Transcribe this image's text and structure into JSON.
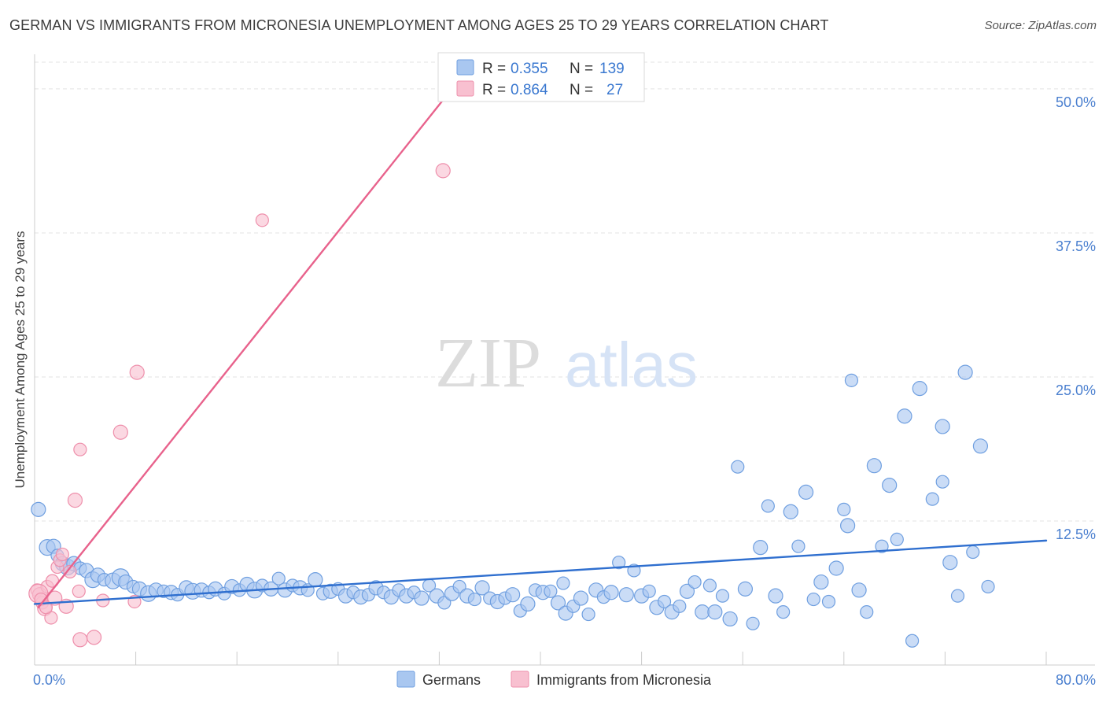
{
  "title": "GERMAN VS IMMIGRANTS FROM MICRONESIA UNEMPLOYMENT AMONG AGES 25 TO 29 YEARS CORRELATION CHART",
  "source": "Source: ZipAtlas.com",
  "watermark": {
    "zip": "ZIP",
    "atlas": "atlas"
  },
  "colors": {
    "german_fill": "#a9c7f0",
    "german_stroke": "#6f9fe0",
    "german_line": "#2f6fcf",
    "micronesia_fill": "#f8c0d0",
    "micronesia_stroke": "#ee8fab",
    "micronesia_line": "#e8628c",
    "axis_text": "#4a7fcf",
    "grid": "#e3e3e3"
  },
  "stats_legend": {
    "r_label": "R =",
    "n_label": "N =",
    "german": {
      "r": "0.355",
      "n": "139"
    },
    "micronesia": {
      "r": "0.864",
      "n": "27"
    }
  },
  "chart_data": {
    "type": "scatter",
    "title": "GERMAN VS IMMIGRANTS FROM MICRONESIA UNEMPLOYMENT AMONG AGES 25 TO 29 YEARS CORRELATION CHART",
    "xlabel": "",
    "ylabel": "Unemployment Among Ages 25 to 29 years",
    "xlim": [
      0,
      80
    ],
    "ylim": [
      0,
      53
    ],
    "x_tick_labels": [
      "0.0%",
      "80.0%"
    ],
    "y_ticks": [
      12.5,
      25.0,
      37.5,
      50.0
    ],
    "y_tick_labels": [
      "12.5%",
      "25.0%",
      "37.5%",
      "50.0%"
    ],
    "grid": true,
    "legend_position": "bottom",
    "series": [
      {
        "name": "Germans",
        "color": "#a9c7f0",
        "trend": {
          "x": [
            0,
            80
          ],
          "y": [
            5.3,
            10.8
          ]
        },
        "points": [
          [
            0.3,
            13.5,
            9
          ],
          [
            1.0,
            10.2,
            10
          ],
          [
            1.5,
            10.3,
            9
          ],
          [
            1.8,
            9.5,
            8
          ],
          [
            2.2,
            8.8,
            9
          ],
          [
            2.6,
            8.5,
            10
          ],
          [
            3.1,
            8.8,
            9
          ],
          [
            3.6,
            8.4,
            8
          ],
          [
            4.1,
            8.2,
            9
          ],
          [
            4.6,
            7.4,
            10
          ],
          [
            5.0,
            7.8,
            9
          ],
          [
            5.5,
            7.4,
            8
          ],
          [
            6.2,
            7.3,
            10
          ],
          [
            6.8,
            7.6,
            11
          ],
          [
            7.2,
            7.2,
            9
          ],
          [
            7.8,
            6.8,
            8
          ],
          [
            8.3,
            6.6,
            9
          ],
          [
            9.0,
            6.2,
            10
          ],
          [
            9.6,
            6.5,
            9
          ],
          [
            10.2,
            6.4,
            8
          ],
          [
            10.8,
            6.3,
            9
          ],
          [
            11.3,
            6.1,
            8
          ],
          [
            12.0,
            6.7,
            9
          ],
          [
            12.5,
            6.4,
            10
          ],
          [
            13.2,
            6.5,
            9
          ],
          [
            13.8,
            6.3,
            8
          ],
          [
            14.3,
            6.6,
            9
          ],
          [
            15.0,
            6.2,
            8
          ],
          [
            15.6,
            6.8,
            9
          ],
          [
            16.2,
            6.5,
            8
          ],
          [
            16.8,
            7.0,
            9
          ],
          [
            17.4,
            6.5,
            10
          ],
          [
            18.0,
            6.9,
            8
          ],
          [
            18.7,
            6.6,
            9
          ],
          [
            19.3,
            7.5,
            8
          ],
          [
            19.8,
            6.5,
            9
          ],
          [
            20.4,
            6.9,
            8
          ],
          [
            21.0,
            6.7,
            9
          ],
          [
            21.6,
            6.5,
            8
          ],
          [
            22.2,
            7.4,
            9
          ],
          [
            22.8,
            6.2,
            8
          ],
          [
            23.4,
            6.4,
            9
          ],
          [
            24.0,
            6.6,
            8
          ],
          [
            24.6,
            6.0,
            9
          ],
          [
            25.2,
            6.3,
            8
          ],
          [
            25.8,
            5.9,
            9
          ],
          [
            26.4,
            6.1,
            8
          ],
          [
            27.0,
            6.7,
            9
          ],
          [
            27.6,
            6.3,
            8
          ],
          [
            28.2,
            5.9,
            9
          ],
          [
            28.8,
            6.5,
            8
          ],
          [
            29.4,
            6.0,
            9
          ],
          [
            30.0,
            6.3,
            8
          ],
          [
            30.6,
            5.8,
            9
          ],
          [
            31.2,
            6.9,
            8
          ],
          [
            31.8,
            6.0,
            9
          ],
          [
            32.4,
            5.4,
            8
          ],
          [
            33.0,
            6.2,
            9
          ],
          [
            33.6,
            6.8,
            8
          ],
          [
            34.2,
            6.0,
            9
          ],
          [
            34.8,
            5.7,
            8
          ],
          [
            35.4,
            6.7,
            9
          ],
          [
            36.0,
            5.8,
            8
          ],
          [
            36.6,
            5.5,
            9
          ],
          [
            37.2,
            5.8,
            8
          ],
          [
            37.8,
            6.1,
            9
          ],
          [
            38.4,
            4.7,
            8
          ],
          [
            39.0,
            5.3,
            9
          ],
          [
            39.6,
            6.5,
            8
          ],
          [
            40.2,
            6.3,
            9
          ],
          [
            40.8,
            6.4,
            8
          ],
          [
            41.4,
            5.4,
            9
          ],
          [
            41.8,
            7.1,
            8
          ],
          [
            42.0,
            4.5,
            9
          ],
          [
            42.6,
            5.1,
            8
          ],
          [
            43.2,
            5.8,
            9
          ],
          [
            43.8,
            4.4,
            8
          ],
          [
            44.4,
            6.5,
            9
          ],
          [
            45.0,
            5.9,
            8
          ],
          [
            45.6,
            6.3,
            9
          ],
          [
            46.2,
            8.9,
            8
          ],
          [
            46.8,
            6.1,
            9
          ],
          [
            47.4,
            8.2,
            8
          ],
          [
            48.0,
            6.0,
            9
          ],
          [
            48.6,
            6.4,
            8
          ],
          [
            49.2,
            5.0,
            9
          ],
          [
            49.8,
            5.5,
            8
          ],
          [
            50.4,
            4.6,
            9
          ],
          [
            51.0,
            5.1,
            8
          ],
          [
            51.6,
            6.4,
            9
          ],
          [
            52.2,
            7.2,
            8
          ],
          [
            52.8,
            4.6,
            9
          ],
          [
            53.4,
            6.9,
            8
          ],
          [
            53.8,
            4.6,
            9
          ],
          [
            54.4,
            6.0,
            8
          ],
          [
            55.0,
            4.0,
            9
          ],
          [
            55.6,
            17.2,
            8
          ],
          [
            56.2,
            6.6,
            9
          ],
          [
            56.8,
            3.6,
            8
          ],
          [
            57.4,
            10.2,
            9
          ],
          [
            58.0,
            13.8,
            8
          ],
          [
            58.6,
            6.0,
            9
          ],
          [
            59.2,
            4.6,
            8
          ],
          [
            59.8,
            13.3,
            9
          ],
          [
            60.4,
            10.3,
            8
          ],
          [
            61.0,
            15.0,
            9
          ],
          [
            61.6,
            5.7,
            8
          ],
          [
            62.2,
            7.2,
            9
          ],
          [
            62.8,
            5.5,
            8
          ],
          [
            63.4,
            8.4,
            9
          ],
          [
            64.0,
            13.5,
            8
          ],
          [
            64.3,
            12.1,
            9
          ],
          [
            64.6,
            24.7,
            8
          ],
          [
            65.2,
            6.5,
            9
          ],
          [
            65.8,
            4.6,
            8
          ],
          [
            66.4,
            17.3,
            9
          ],
          [
            67.0,
            10.3,
            8
          ],
          [
            67.6,
            15.6,
            9
          ],
          [
            68.2,
            10.9,
            8
          ],
          [
            68.8,
            21.6,
            9
          ],
          [
            69.4,
            2.1,
            8
          ],
          [
            70.0,
            24.0,
            9
          ],
          [
            71.0,
            14.4,
            8
          ],
          [
            71.8,
            20.7,
            9
          ],
          [
            71.8,
            15.9,
            8
          ],
          [
            72.4,
            8.9,
            9
          ],
          [
            73.0,
            6.0,
            8
          ],
          [
            73.6,
            25.4,
            9
          ],
          [
            74.2,
            9.8,
            8
          ],
          [
            74.8,
            19.0,
            9
          ],
          [
            75.4,
            6.8,
            8
          ]
        ]
      },
      {
        "name": "Immigrants from Micronesia",
        "color": "#f8c0d0",
        "trend": {
          "x": [
            0.3,
            33.0
          ],
          "y": [
            5.0,
            50.0
          ]
        },
        "points": [
          [
            0.2,
            6.5,
            8
          ],
          [
            0.4,
            6.1,
            9
          ],
          [
            0.6,
            5.4,
            8
          ],
          [
            0.8,
            4.9,
            9
          ],
          [
            1.0,
            6.8,
            8
          ],
          [
            1.3,
            4.1,
            8
          ],
          [
            1.6,
            5.8,
            9
          ],
          [
            1.8,
            8.5,
            8
          ],
          [
            2.0,
            9.1,
            8
          ],
          [
            2.2,
            9.6,
            8
          ],
          [
            2.5,
            5.1,
            9
          ],
          [
            2.8,
            8.1,
            8
          ],
          [
            3.2,
            14.3,
            9
          ],
          [
            3.5,
            6.4,
            8
          ],
          [
            3.6,
            2.2,
            9
          ],
          [
            3.6,
            18.7,
            8
          ],
          [
            4.7,
            2.4,
            9
          ],
          [
            5.4,
            5.6,
            8
          ],
          [
            6.8,
            20.2,
            9
          ],
          [
            7.9,
            5.5,
            8
          ],
          [
            8.1,
            25.4,
            9
          ],
          [
            18.0,
            38.6,
            8
          ],
          [
            32.3,
            42.9,
            9
          ],
          [
            0.3,
            6.2,
            12
          ],
          [
            0.5,
            5.7,
            8
          ],
          [
            0.9,
            5.0,
            8
          ],
          [
            1.4,
            7.3,
            8
          ]
        ]
      }
    ]
  }
}
